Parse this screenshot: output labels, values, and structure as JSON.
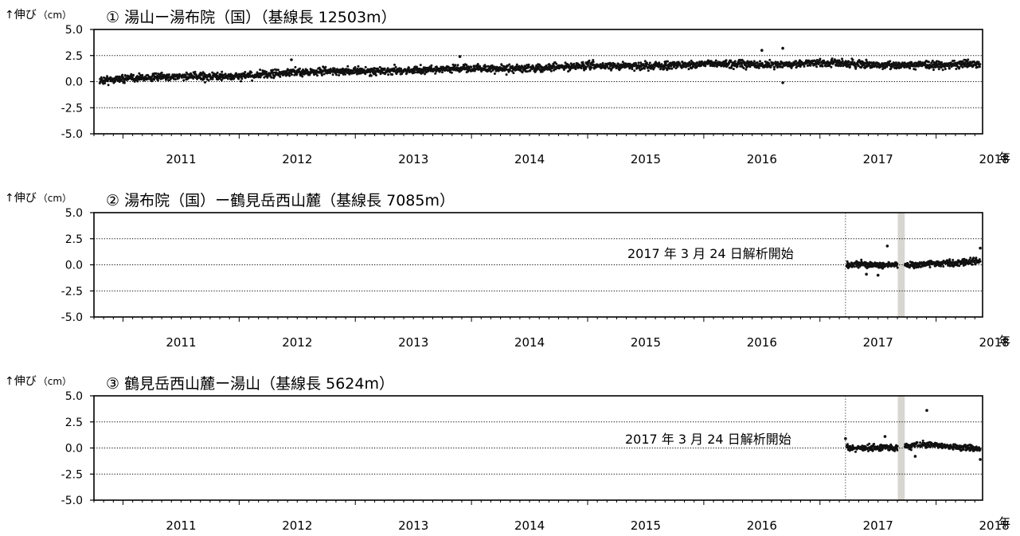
{
  "x_axis_unit": "年",
  "chart_data": [
    {
      "type": "scatter",
      "title": "① 湯山ー湯布院（国）（基線長 12503m）",
      "ylabel": "↑伸び",
      "yunit": "（cm）",
      "ylim": [
        -5.0,
        5.0
      ],
      "yticks": [
        "5.0",
        "2.5",
        "0.0",
        "-2.5",
        "-5.0"
      ],
      "xlim": [
        2010.75,
        2018.4
      ],
      "xticks": [
        "2011",
        "2012",
        "2013",
        "2014",
        "2015",
        "2016",
        "2017",
        "2018"
      ],
      "grid": "dotted horizontal at 2.5, 0.0, -2.5",
      "series": [
        {
          "x": [
            2010.8,
            2011.0,
            2011.25,
            2011.5,
            2011.75,
            2012.0,
            2012.25,
            2012.5,
            2012.75,
            2013.0,
            2013.25,
            2013.5,
            2013.75,
            2014.0,
            2014.25,
            2014.5,
            2014.75,
            2015.0,
            2015.25,
            2015.5,
            2015.75,
            2016.0,
            2016.25,
            2016.5,
            2016.75,
            2017.0,
            2017.25,
            2017.5,
            2017.75,
            2018.0,
            2018.25,
            2018.38
          ],
          "y": [
            0.1,
            0.3,
            0.4,
            0.5,
            0.5,
            0.5,
            0.7,
            0.9,
            1.0,
            1.0,
            1.0,
            1.1,
            1.2,
            1.3,
            1.2,
            1.3,
            1.4,
            1.5,
            1.5,
            1.5,
            1.6,
            1.7,
            1.7,
            1.6,
            1.7,
            1.8,
            1.7,
            1.6,
            1.6,
            1.6,
            1.7,
            1.6
          ],
          "scatter_sd": 0.3
        }
      ],
      "outliers": {
        "x": [
          2016.5,
          2016.68,
          2016.68,
          2012.45,
          2013.9
        ],
        "y": [
          3.0,
          3.2,
          -0.1,
          2.1,
          2.4
        ]
      },
      "annotation": "",
      "analysis_start": null,
      "gray_band": null
    },
    {
      "type": "scatter",
      "title": "② 湯布院（国）ー鶴見岳西山麓（基線長 7085m）",
      "ylabel": "↑伸び",
      "yunit": "（cm）",
      "ylim": [
        -5.0,
        5.0
      ],
      "yticks": [
        "5.0",
        "2.5",
        "0.0",
        "-2.5",
        "-5.0"
      ],
      "xlim": [
        2010.75,
        2018.4
      ],
      "xticks": [
        "2011",
        "2012",
        "2013",
        "2014",
        "2015",
        "2016",
        "2017",
        "2018"
      ],
      "grid": "dotted horizontal at 2.5, 0.0, -2.5",
      "series": [
        {
          "x": [
            2017.23,
            2017.35,
            2017.45,
            2017.55,
            2017.65,
            2017.8,
            2017.9,
            2018.0,
            2018.1,
            2018.2,
            2018.3,
            2018.38
          ],
          "y": [
            0.0,
            0.1,
            0.0,
            -0.1,
            0.0,
            0.0,
            0.1,
            0.1,
            0.2,
            0.2,
            0.3,
            0.4
          ],
          "scatter_sd": 0.25
        }
      ],
      "outliers": {
        "x": [
          2017.58,
          2017.4,
          2017.5,
          2018.38
        ],
        "y": [
          1.8,
          -0.9,
          -1.0,
          1.6
        ]
      },
      "annotation": "2017 年 3 月 24 日解析開始",
      "analysis_start": 2017.22,
      "gray_band": [
        2017.67,
        2017.73
      ]
    },
    {
      "type": "scatter",
      "title": "③ 鶴見岳西山麓ー湯山（基線長 5624m）",
      "ylabel": "↑伸び",
      "yunit": "（cm）",
      "ylim": [
        -5.0,
        5.0
      ],
      "yticks": [
        "5.0",
        "2.5",
        "0.0",
        "-2.5",
        "-5.0"
      ],
      "xlim": [
        2010.75,
        2018.4
      ],
      "xticks": [
        "2011",
        "2012",
        "2013",
        "2014",
        "2015",
        "2016",
        "2017",
        "2018"
      ],
      "grid": "dotted horizontal at 2.5, 0.0, -2.5",
      "series": [
        {
          "x": [
            2017.23,
            2017.35,
            2017.45,
            2017.55,
            2017.65,
            2017.8,
            2017.9,
            2018.0,
            2018.1,
            2018.2,
            2018.3,
            2018.38
          ],
          "y": [
            0.0,
            0.0,
            0.0,
            0.1,
            0.0,
            0.2,
            0.3,
            0.3,
            0.2,
            0.1,
            0.0,
            -0.1
          ],
          "scatter_sd": 0.25
        }
      ],
      "outliers": {
        "x": [
          2017.92,
          2017.22,
          2017.56,
          2017.82,
          2018.38
        ],
        "y": [
          3.6,
          0.9,
          1.1,
          -0.8,
          -1.1
        ]
      },
      "annotation": "2017 年 3 月 24 日解析開始",
      "analysis_start": 2017.22,
      "gray_band": [
        2017.67,
        2017.73
      ]
    }
  ]
}
